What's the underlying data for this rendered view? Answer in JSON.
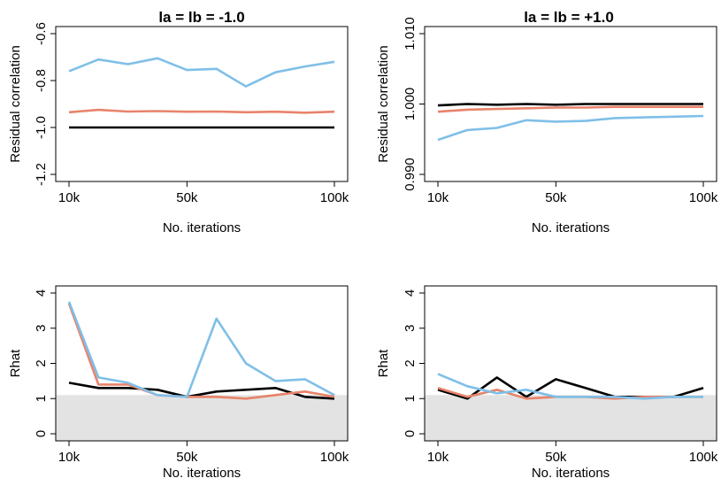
{
  "chart_data": [
    {
      "type": "line",
      "title": "la = lb = -1.0",
      "xlabel": "No. iterations",
      "ylabel": "Residual correlation",
      "xlim": [
        10000,
        100000
      ],
      "ylim": [
        -1.2,
        -0.6
      ],
      "x_ticks": [
        10000,
        50000,
        100000
      ],
      "x_tick_labels": [
        "10k",
        "50k",
        "100k"
      ],
      "y_ticks": [
        -1.2,
        -1.0,
        -0.8,
        -0.6
      ],
      "y_tick_labels": [
        "-1.2",
        "-1.0",
        "-0.8",
        "-0.6"
      ],
      "x": [
        10000,
        20000,
        30000,
        40000,
        50000,
        60000,
        70000,
        80000,
        90000,
        100000
      ],
      "series": [
        {
          "color": "#000000",
          "values": [
            -1.0,
            -1.0,
            -1.0,
            -1.0,
            -1.0,
            -1.0,
            -1.0,
            -1.0,
            -1.0,
            -1.0
          ]
        },
        {
          "color": "#e8836b",
          "values": [
            -0.935,
            -0.925,
            -0.932,
            -0.93,
            -0.933,
            -0.932,
            -0.935,
            -0.933,
            -0.937,
            -0.933
          ]
        },
        {
          "color": "#7fbfe8",
          "values": [
            -0.76,
            -0.71,
            -0.73,
            -0.705,
            -0.755,
            -0.75,
            -0.825,
            -0.765,
            -0.74,
            -0.72
          ]
        }
      ],
      "shade_below": null,
      "grid": false
    },
    {
      "type": "line",
      "title": "la = lb = +1.0",
      "xlabel": "No. iterations",
      "ylabel": "Residual correlation",
      "xlim": [
        10000,
        100000
      ],
      "ylim": [
        0.99,
        1.01
      ],
      "x_ticks": [
        10000,
        50000,
        100000
      ],
      "x_tick_labels": [
        "10k",
        "50k",
        "100k"
      ],
      "y_ticks": [
        0.99,
        1.0,
        1.01
      ],
      "y_tick_labels": [
        "0.990",
        "1.000",
        "1.010"
      ],
      "x": [
        10000,
        20000,
        30000,
        40000,
        50000,
        60000,
        70000,
        80000,
        90000,
        100000
      ],
      "series": [
        {
          "color": "#000000",
          "values": [
            0.9998,
            1.0,
            0.9999,
            1.0,
            0.9999,
            1.0,
            1.0,
            1.0,
            1.0,
            1.0
          ]
        },
        {
          "color": "#e8836b",
          "values": [
            0.9989,
            0.9992,
            0.9993,
            0.9994,
            0.9995,
            0.9995,
            0.9996,
            0.9996,
            0.9996,
            0.9996
          ]
        },
        {
          "color": "#7fbfe8",
          "values": [
            0.9949,
            0.9963,
            0.9966,
            0.9977,
            0.9975,
            0.9976,
            0.998,
            0.9981,
            0.9982,
            0.9983
          ]
        }
      ],
      "shade_below": null,
      "grid": false
    },
    {
      "type": "line",
      "title": "",
      "xlabel": "No. iterations",
      "ylabel": "Rhat",
      "xlim": [
        10000,
        100000
      ],
      "ylim": [
        0,
        4
      ],
      "x_ticks": [
        10000,
        50000,
        100000
      ],
      "x_tick_labels": [
        "10k",
        "50k",
        "100k"
      ],
      "y_ticks": [
        0,
        1,
        2,
        3,
        4
      ],
      "y_tick_labels": [
        "0",
        "1",
        "2",
        "3",
        "4"
      ],
      "x": [
        10000,
        20000,
        30000,
        40000,
        50000,
        60000,
        70000,
        80000,
        90000,
        100000
      ],
      "series": [
        {
          "color": "#000000",
          "values": [
            1.45,
            1.3,
            1.3,
            1.25,
            1.05,
            1.2,
            1.25,
            1.3,
            1.05,
            1.0
          ]
        },
        {
          "color": "#e8836b",
          "values": [
            3.7,
            1.4,
            1.4,
            1.1,
            1.05,
            1.05,
            1.0,
            1.1,
            1.2,
            1.05
          ]
        },
        {
          "color": "#7fbfe8",
          "values": [
            3.75,
            1.6,
            1.45,
            1.1,
            1.05,
            3.27,
            2.0,
            1.5,
            1.55,
            1.1
          ]
        }
      ],
      "shade_below": 1.1,
      "shade_color": "#e3e3e3",
      "grid": false
    },
    {
      "type": "line",
      "title": "",
      "xlabel": "No. iterations",
      "ylabel": "Rhat",
      "xlim": [
        10000,
        100000
      ],
      "ylim": [
        0,
        4
      ],
      "x_ticks": [
        10000,
        50000,
        100000
      ],
      "x_tick_labels": [
        "10k",
        "50k",
        "100k"
      ],
      "y_ticks": [
        0,
        1,
        2,
        3,
        4
      ],
      "y_tick_labels": [
        "0",
        "1",
        "2",
        "3",
        "4"
      ],
      "x": [
        10000,
        20000,
        30000,
        40000,
        50000,
        60000,
        70000,
        80000,
        90000,
        100000
      ],
      "series": [
        {
          "color": "#000000",
          "values": [
            1.25,
            1.0,
            1.6,
            1.05,
            1.55,
            1.3,
            1.05,
            1.05,
            1.05,
            1.3
          ]
        },
        {
          "color": "#e8836b",
          "values": [
            1.3,
            1.05,
            1.25,
            1.0,
            1.05,
            1.05,
            1.0,
            1.05,
            1.05,
            1.05
          ]
        },
        {
          "color": "#7fbfe8",
          "values": [
            1.7,
            1.35,
            1.15,
            1.25,
            1.05,
            1.05,
            1.05,
            1.0,
            1.05,
            1.05
          ]
        }
      ],
      "shade_below": 1.1,
      "shade_color": "#e3e3e3",
      "grid": false
    }
  ]
}
